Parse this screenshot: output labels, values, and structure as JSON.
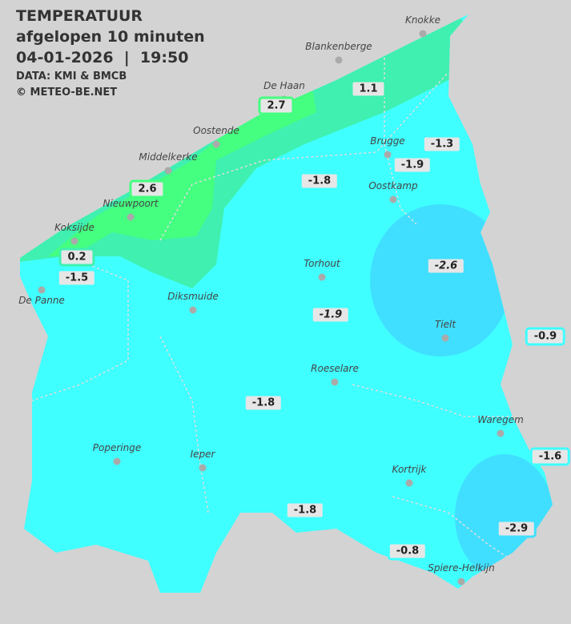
{
  "header": {
    "title": "TEMPERATUUR",
    "subtitle": "afgelopen 10 minuten",
    "datetime": "04-01-2026  |  19:50",
    "source": "DATA: KMI & BMCB",
    "copyright": "© METEO-BE.NET"
  },
  "colors": {
    "background": "#d3d3d3",
    "cold_zone": "#40dfff",
    "base_zone": "#40ffff",
    "mild_zone": "#3ff0b0",
    "warm_zone": "#44ff80"
  },
  "cities": [
    {
      "name": "Knokke"
    },
    {
      "name": "Blankenberge"
    },
    {
      "name": "De Haan"
    },
    {
      "name": "Oostende"
    },
    {
      "name": "Brugge"
    },
    {
      "name": "Middelkerke"
    },
    {
      "name": "Oostkamp"
    },
    {
      "name": "Nieuwpoort"
    },
    {
      "name": "Koksijde"
    },
    {
      "name": "De Panne"
    },
    {
      "name": "Torhout"
    },
    {
      "name": "Diksmuide"
    },
    {
      "name": "Tielt"
    },
    {
      "name": "Roeselare"
    },
    {
      "name": "Waregem"
    },
    {
      "name": "Poperinge"
    },
    {
      "name": "Ieper"
    },
    {
      "name": "Kortrijk"
    },
    {
      "name": "Spiere-Helkijn"
    }
  ],
  "readings": [
    {
      "value": "1.1",
      "color": "#3ff0b0"
    },
    {
      "value": "2.7",
      "color": "#44ff80"
    },
    {
      "value": "-1.3",
      "color": "#40ffff"
    },
    {
      "value": "-1.9",
      "color": "#40ffff"
    },
    {
      "value": "-1.8",
      "color": "#40ffff"
    },
    {
      "value": "2.6",
      "color": "#44ff80"
    },
    {
      "value": "0.2",
      "color": "#3ff0b0"
    },
    {
      "value": "-1.5",
      "color": "#40ffff"
    },
    {
      "value": "-2.6",
      "color": "#40dfff"
    },
    {
      "value": "-1.9",
      "color": "#40ffff"
    },
    {
      "value": "-0.9",
      "color": "#40ffff"
    },
    {
      "value": "-1.8",
      "color": "#40ffff"
    },
    {
      "value": "-1.6",
      "color": "#40ffff"
    },
    {
      "value": "-1.8",
      "color": "#40ffff"
    },
    {
      "value": "-2.9",
      "color": "#40dfff"
    },
    {
      "value": "-0.8",
      "color": "#40ffff"
    }
  ]
}
